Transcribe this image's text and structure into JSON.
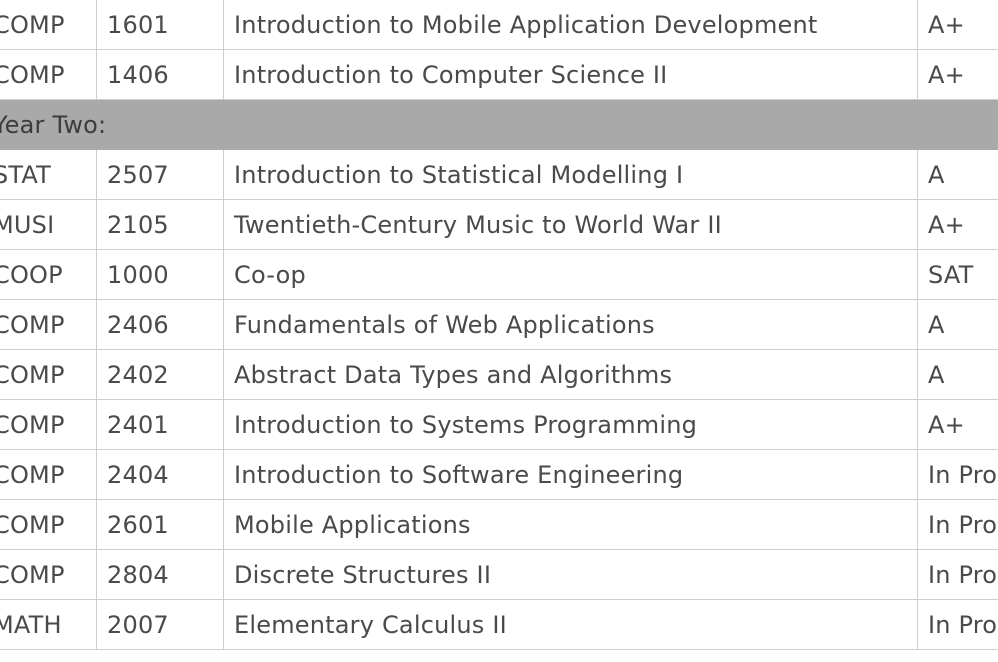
{
  "transcript": {
    "rows_before": [
      {
        "subject": "COMP",
        "number": "1601",
        "title": "Introduction to Mobile Application Development",
        "grade": "A+"
      },
      {
        "subject": "COMP",
        "number": "1406",
        "title": "Introduction to Computer Science II",
        "grade": "A+"
      }
    ],
    "year_two_label": "Year Two:",
    "rows_after": [
      {
        "subject": "STAT",
        "number": "2507",
        "title": "Introduction to Statistical Modelling I",
        "grade": "A"
      },
      {
        "subject": "MUSI",
        "number": "2105",
        "title": "Twentieth-Century Music to World War II",
        "grade": "A+"
      },
      {
        "subject": "COOP",
        "number": "1000",
        "title": "Co-op",
        "grade": "SAT"
      },
      {
        "subject": "COMP",
        "number": "2406",
        "title": "Fundamentals of Web Applications",
        "grade": "A"
      },
      {
        "subject": "COMP",
        "number": "2402",
        "title": "Abstract Data Types and Algorithms",
        "grade": "A"
      },
      {
        "subject": "COMP",
        "number": "2401",
        "title": "Introduction to Systems Programming",
        "grade": "A+"
      },
      {
        "subject": "COMP",
        "number": "2404",
        "title": "Introduction to Software Engineering",
        "grade": "In Progress"
      },
      {
        "subject": "COMP",
        "number": "2601",
        "title": "Mobile Applications",
        "grade": "In Progress"
      },
      {
        "subject": "COMP",
        "number": "2804",
        "title": "Discrete Structures II",
        "grade": "In Progress"
      },
      {
        "subject": "MATH",
        "number": "2007",
        "title": "Elementary Calculus II",
        "grade": "In Progress"
      }
    ]
  },
  "colors": {
    "header_bg": "#a9a9a9",
    "border": "#cfcfcf",
    "text": "#4a4a4a"
  }
}
